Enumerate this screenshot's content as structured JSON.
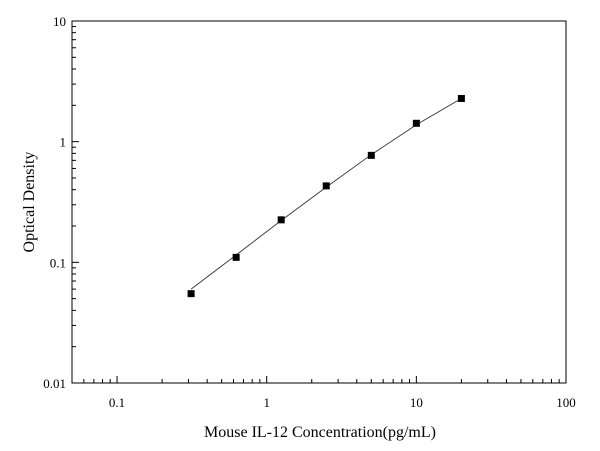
{
  "chart_data": {
    "type": "scatter",
    "title": "",
    "xlabel": "Mouse IL-12 Concentration(pg/mL)",
    "ylabel": "Optical Density",
    "xscale": "log",
    "yscale": "log",
    "xlim": [
      0.05,
      100
    ],
    "ylim": [
      0.01,
      10
    ],
    "x_ticks": [
      0.1,
      1,
      10,
      100
    ],
    "x_tick_labels": [
      "0.1",
      "1",
      "10",
      "100"
    ],
    "y_ticks": [
      0.01,
      0.1,
      1,
      10
    ],
    "y_tick_labels": [
      "0.01",
      "0.1",
      "1",
      "10"
    ],
    "grid": false,
    "marker": "square",
    "color": "#000000",
    "series": [
      {
        "x": [
          0.3125,
          0.625,
          1.25,
          2.5,
          5,
          10,
          20
        ],
        "y": [
          0.055,
          0.11,
          0.225,
          0.43,
          0.77,
          1.42,
          2.28
        ]
      }
    ],
    "fit_line": {
      "x": [
        0.3125,
        0.625,
        1.25,
        2.5,
        5,
        10,
        20
      ],
      "y": [
        0.06,
        0.115,
        0.222,
        0.42,
        0.78,
        1.38,
        2.28
      ]
    }
  }
}
